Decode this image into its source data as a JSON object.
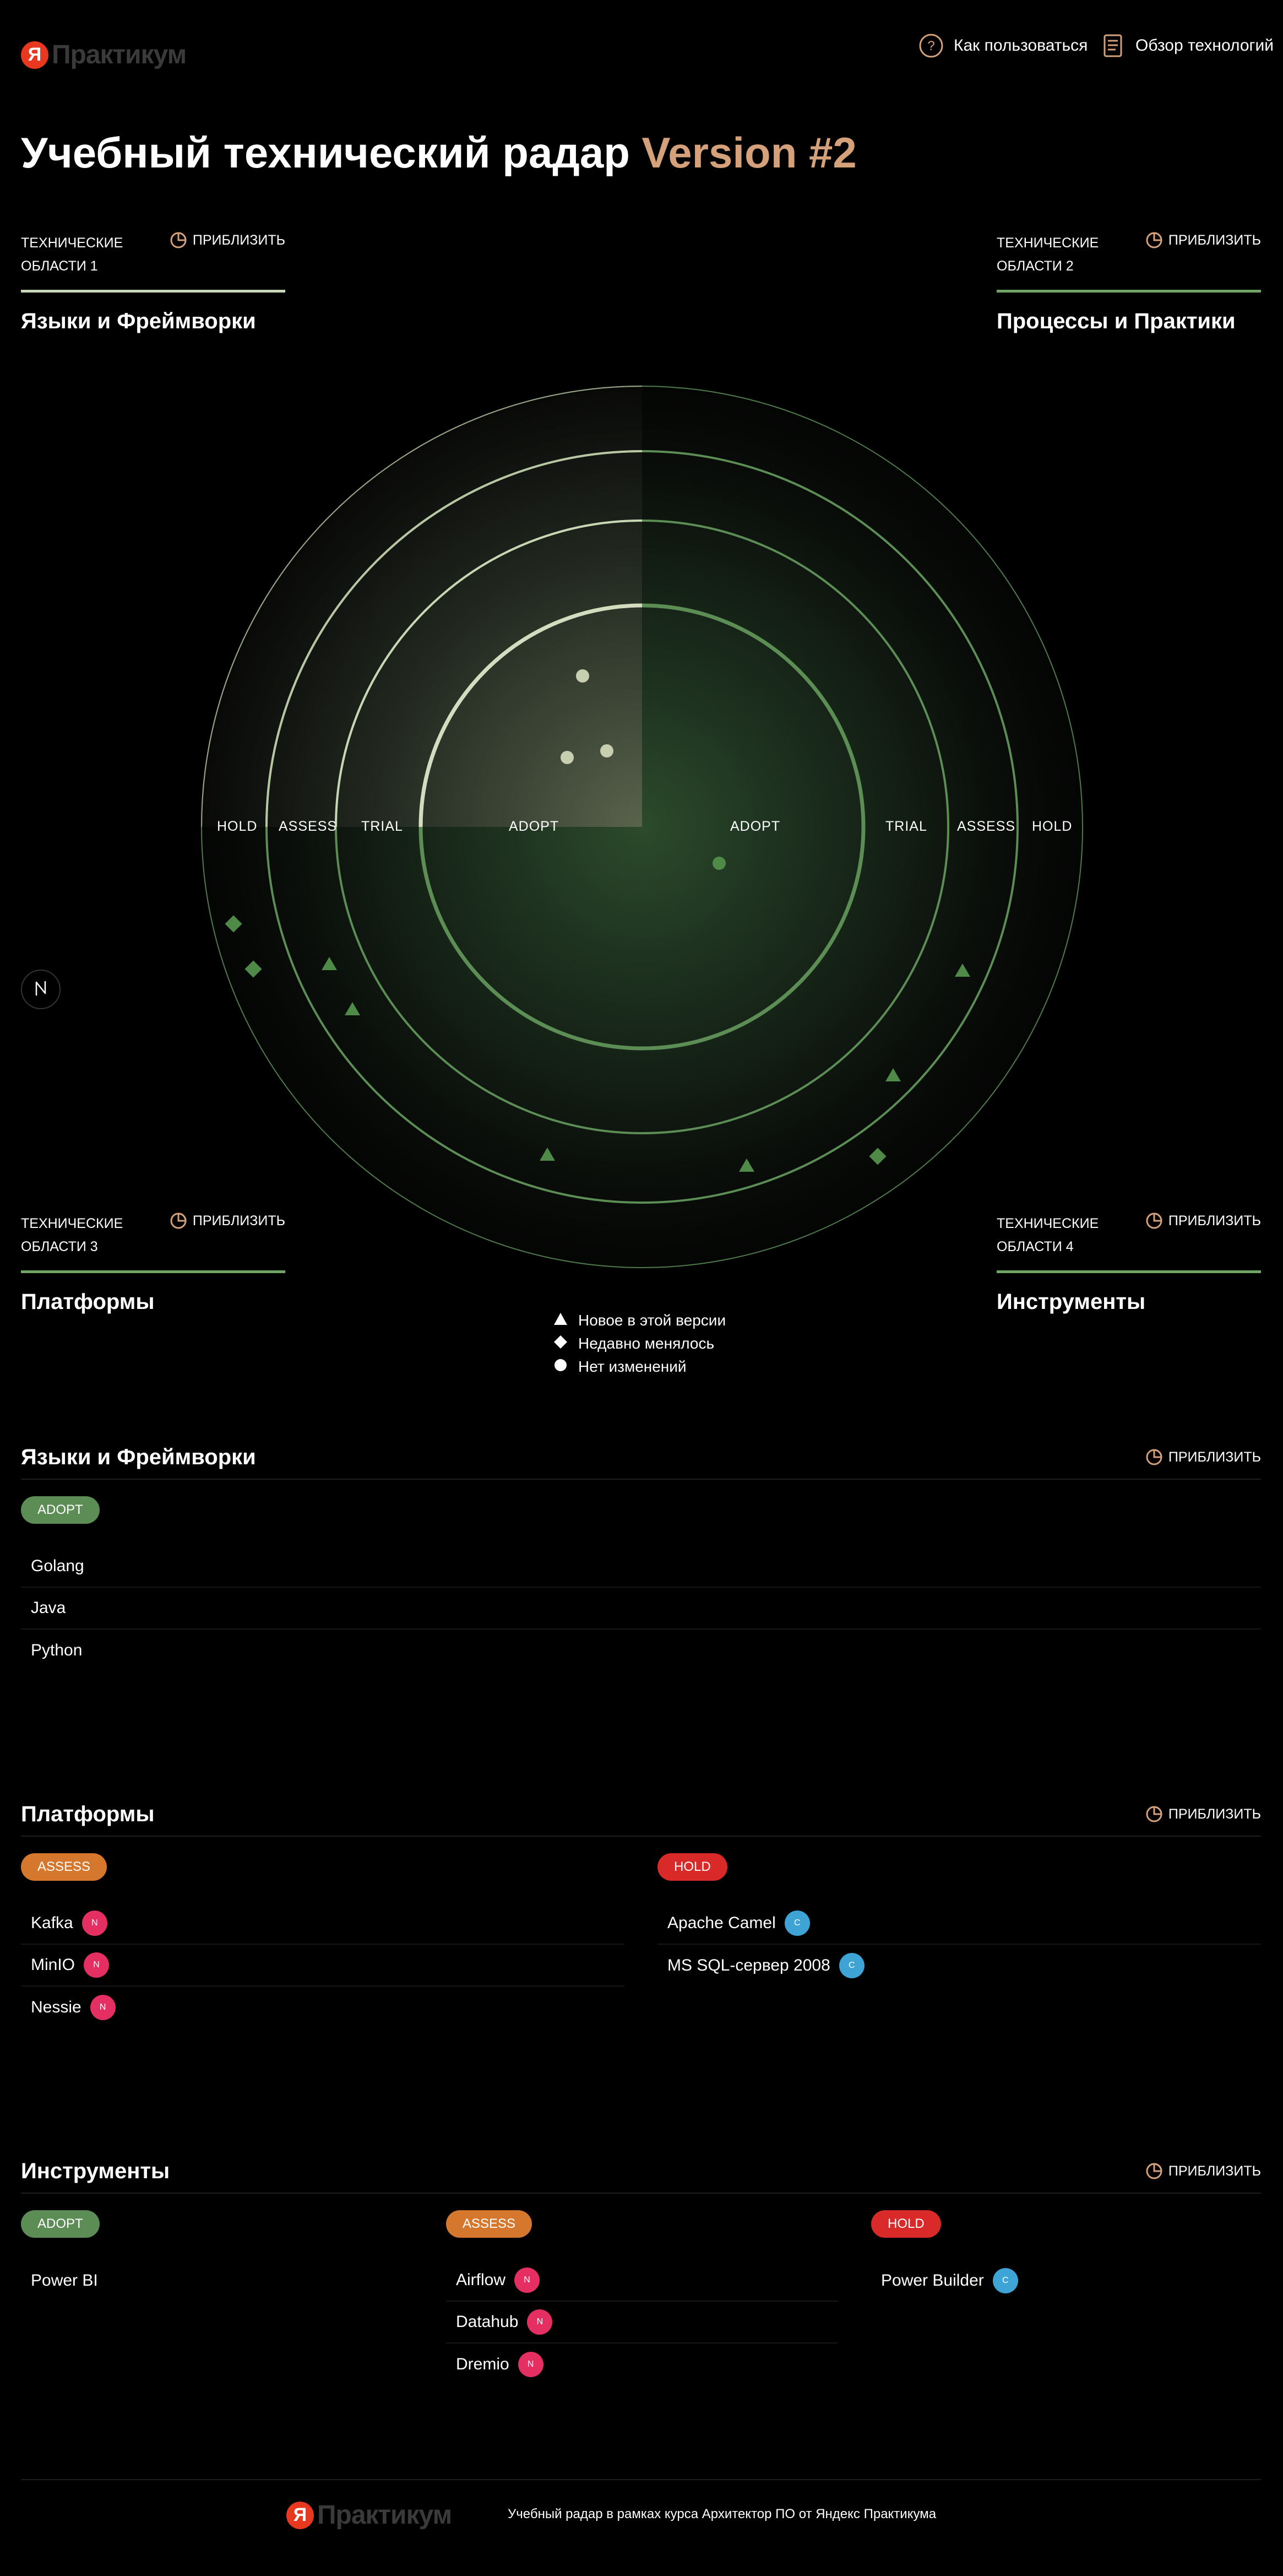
{
  "header": {
    "logo_letter": "Я",
    "logo_text": "Практикум",
    "nav": [
      {
        "label": "Как пользоваться",
        "icon": "help-circle-icon"
      },
      {
        "label": "Обзор технологий",
        "icon": "document-icon"
      }
    ]
  },
  "title": {
    "main": "Учебный технический радар",
    "version": "Version #2"
  },
  "zoom_label": "ПРИБЛИЗИТЬ",
  "quadrants": [
    {
      "label": "ТЕХНИЧЕСКИЕ ОБЛАСТИ 1",
      "name": "Языки и Фреймворки"
    },
    {
      "label": "ТЕХНИЧЕСКИЕ ОБЛАСТИ 2",
      "name": "Процессы и Практики"
    },
    {
      "label": "ТЕХНИЧЕСКИЕ ОБЛАСТИ 3",
      "name": "Платформы"
    },
    {
      "label": "ТЕХНИЧЕСКИЕ ОБЛАСТИ 4",
      "name": "Инструменты"
    }
  ],
  "rings": [
    "ADOPT",
    "TRIAL",
    "ASSESS",
    "HOLD"
  ],
  "legend": [
    {
      "shape": "triangle",
      "label": "Новое в этой версии"
    },
    {
      "shape": "diamond",
      "label": "Недавно менялось"
    },
    {
      "shape": "circle",
      "label": "Нет изменений"
    }
  ],
  "colors": {
    "adopt": "#5b8d55",
    "assess": "#d5782e",
    "hold": "#d92929",
    "accent": "#d4a17a",
    "new_badge": "#e52e62",
    "changed_badge": "#3ea4d6"
  },
  "sections": [
    {
      "title": "Языки и Фреймворки",
      "groups": [
        {
          "ring": "ADOPT",
          "items": [
            {
              "name": "Golang"
            },
            {
              "name": "Java"
            },
            {
              "name": "Python"
            }
          ]
        }
      ]
    },
    {
      "title": "Платформы",
      "groups": [
        {
          "ring": "ASSESS",
          "items": [
            {
              "name": "Kafka",
              "badge": "N"
            },
            {
              "name": "MinIO",
              "badge": "N"
            },
            {
              "name": "Nessie",
              "badge": "N"
            }
          ]
        },
        {
          "ring": "HOLD",
          "items": [
            {
              "name": "Apache Camel",
              "badge": "C"
            },
            {
              "name": "MS SQL-сервер 2008",
              "badge": "C"
            }
          ]
        }
      ]
    },
    {
      "title": "Инструменты",
      "groups": [
        {
          "ring": "ADOPT",
          "items": [
            {
              "name": "Power BI"
            }
          ]
        },
        {
          "ring": "ASSESS",
          "items": [
            {
              "name": "Airflow",
              "badge": "N"
            },
            {
              "name": "Datahub",
              "badge": "N"
            },
            {
              "name": "Dremio",
              "badge": "N"
            }
          ]
        },
        {
          "ring": "HOLD",
          "items": [
            {
              "name": "Power Builder",
              "badge": "C"
            }
          ]
        }
      ]
    }
  ],
  "footer": {
    "logo_letter": "Я",
    "logo_text": "Практикум",
    "text": "Учебный радар в рамках курса Архитектор ПО от Яндекс Практикума"
  }
}
